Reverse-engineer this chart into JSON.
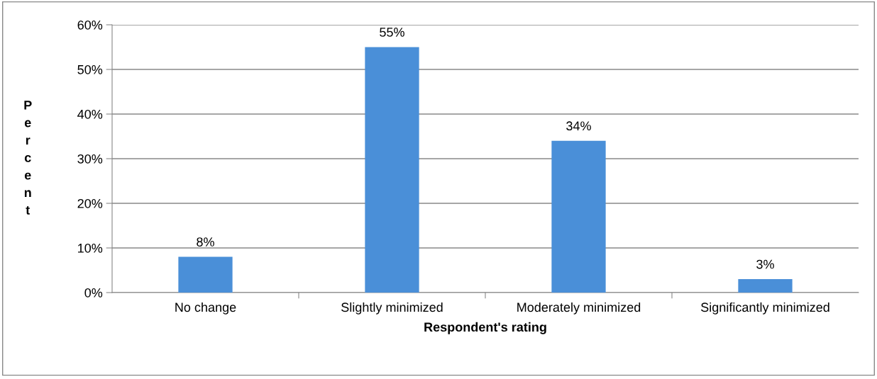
{
  "chart_data": {
    "type": "bar",
    "xlabel": "Respondent's rating",
    "ylabel": "Percent",
    "categories": [
      "No change",
      "Slightly minimized",
      "Moderately minimized",
      "Significantly minimized"
    ],
    "values": [
      8,
      55,
      34,
      3
    ],
    "value_labels": [
      "8%",
      "55%",
      "34%",
      "3%"
    ],
    "color": "#4a8fd8",
    "ylim": [
      0,
      60
    ],
    "yticks": [
      {
        "value": 0,
        "label": "0%"
      },
      {
        "value": 10,
        "label": "10%"
      },
      {
        "value": 20,
        "label": "20%"
      },
      {
        "value": 30,
        "label": "30%"
      },
      {
        "value": 40,
        "label": "40%"
      },
      {
        "value": 50,
        "label": "50%"
      },
      {
        "value": 60,
        "label": "60%"
      }
    ],
    "grid": "y",
    "legend": false
  }
}
